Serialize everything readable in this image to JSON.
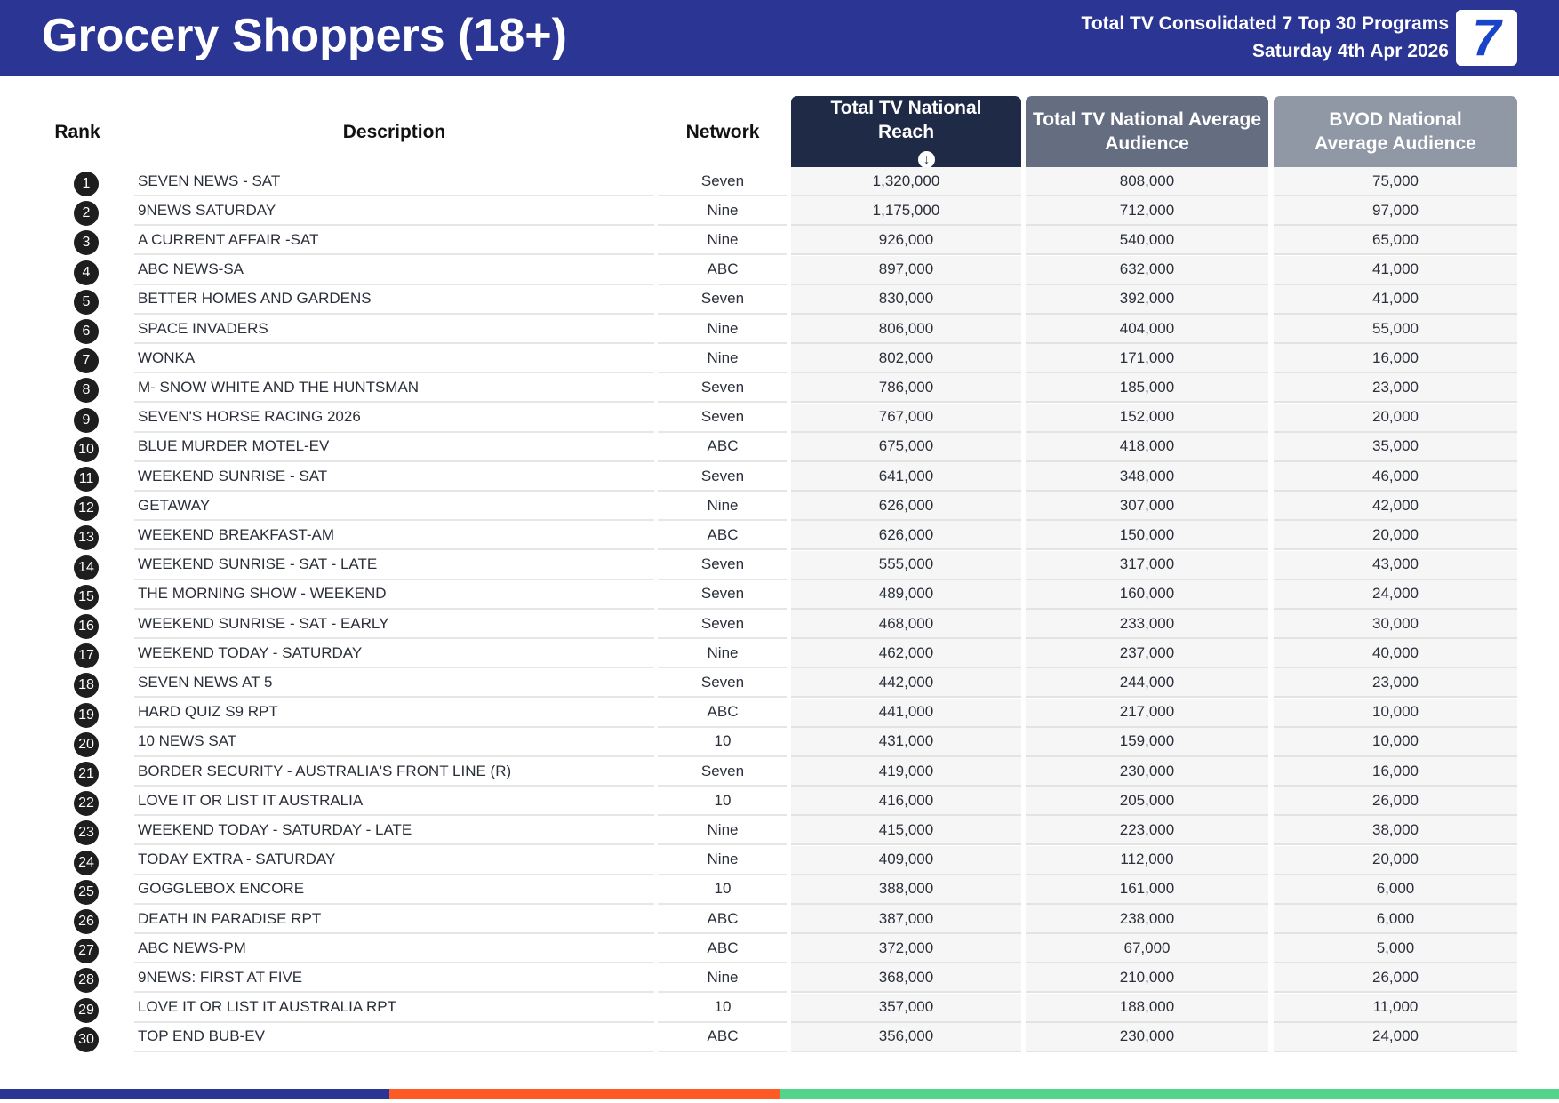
{
  "header": {
    "title": "Grocery Shoppers (18+)",
    "subtitle1": "Total TV Consolidated 7 Top 30 Programs",
    "subtitle2": "Saturday 4th Apr 2026",
    "logo_text": "7"
  },
  "columns": {
    "rank": "Rank",
    "description": "Description",
    "network": "Network",
    "reach": "Total TV National Reach",
    "avg": "Total TV National Average Audience",
    "bvod": "BVOD National Average Audience"
  },
  "colors": {
    "header_bg": "#2b3593",
    "reach_header": "#1f2a47",
    "avg_header": "#656d80",
    "bvod_header": "#9198a5",
    "bar_blue": "#2b3593",
    "bar_orange": "#ff5a26",
    "bar_green": "#52d48a"
  },
  "rows": [
    {
      "rank": "1",
      "desc": "SEVEN NEWS - SAT",
      "network": "Seven",
      "reach": "1,320,000",
      "avg": "808,000",
      "bvod": "75,000"
    },
    {
      "rank": "2",
      "desc": "9NEWS SATURDAY",
      "network": "Nine",
      "reach": "1,175,000",
      "avg": "712,000",
      "bvod": "97,000"
    },
    {
      "rank": "3",
      "desc": "A CURRENT AFFAIR -SAT",
      "network": "Nine",
      "reach": "926,000",
      "avg": "540,000",
      "bvod": "65,000"
    },
    {
      "rank": "4",
      "desc": "ABC NEWS-SA",
      "network": "ABC",
      "reach": "897,000",
      "avg": "632,000",
      "bvod": "41,000"
    },
    {
      "rank": "5",
      "desc": "BETTER HOMES AND GARDENS",
      "network": "Seven",
      "reach": "830,000",
      "avg": "392,000",
      "bvod": "41,000"
    },
    {
      "rank": "6",
      "desc": "SPACE INVADERS",
      "network": "Nine",
      "reach": "806,000",
      "avg": "404,000",
      "bvod": "55,000"
    },
    {
      "rank": "7",
      "desc": "WONKA",
      "network": "Nine",
      "reach": "802,000",
      "avg": "171,000",
      "bvod": "16,000"
    },
    {
      "rank": "8",
      "desc": "M- SNOW WHITE AND THE HUNTSMAN",
      "network": "Seven",
      "reach": "786,000",
      "avg": "185,000",
      "bvod": "23,000"
    },
    {
      "rank": "9",
      "desc": "SEVEN'S HORSE RACING 2026",
      "network": "Seven",
      "reach": "767,000",
      "avg": "152,000",
      "bvod": "20,000"
    },
    {
      "rank": "10",
      "desc": "BLUE MURDER MOTEL-EV",
      "network": "ABC",
      "reach": "675,000",
      "avg": "418,000",
      "bvod": "35,000"
    },
    {
      "rank": "11",
      "desc": "WEEKEND SUNRISE - SAT",
      "network": "Seven",
      "reach": "641,000",
      "avg": "348,000",
      "bvod": "46,000"
    },
    {
      "rank": "12",
      "desc": "GETAWAY",
      "network": "Nine",
      "reach": "626,000",
      "avg": "307,000",
      "bvod": "42,000"
    },
    {
      "rank": "13",
      "desc": "WEEKEND BREAKFAST-AM",
      "network": "ABC",
      "reach": "626,000",
      "avg": "150,000",
      "bvod": "20,000"
    },
    {
      "rank": "14",
      "desc": "WEEKEND SUNRISE - SAT - LATE",
      "network": "Seven",
      "reach": "555,000",
      "avg": "317,000",
      "bvod": "43,000"
    },
    {
      "rank": "15",
      "desc": "THE MORNING SHOW - WEEKEND",
      "network": "Seven",
      "reach": "489,000",
      "avg": "160,000",
      "bvod": "24,000"
    },
    {
      "rank": "16",
      "desc": "WEEKEND SUNRISE - SAT - EARLY",
      "network": "Seven",
      "reach": "468,000",
      "avg": "233,000",
      "bvod": "30,000"
    },
    {
      "rank": "17",
      "desc": "WEEKEND TODAY - SATURDAY",
      "network": "Nine",
      "reach": "462,000",
      "avg": "237,000",
      "bvod": "40,000"
    },
    {
      "rank": "18",
      "desc": "SEVEN NEWS AT 5",
      "network": "Seven",
      "reach": "442,000",
      "avg": "244,000",
      "bvod": "23,000"
    },
    {
      "rank": "19",
      "desc": "HARD QUIZ S9 RPT",
      "network": "ABC",
      "reach": "441,000",
      "avg": "217,000",
      "bvod": "10,000"
    },
    {
      "rank": "20",
      "desc": "10 NEWS SAT",
      "network": "10",
      "reach": "431,000",
      "avg": "159,000",
      "bvod": "10,000"
    },
    {
      "rank": "21",
      "desc": "BORDER SECURITY - AUSTRALIA'S FRONT LINE (R)",
      "network": "Seven",
      "reach": "419,000",
      "avg": "230,000",
      "bvod": "16,000"
    },
    {
      "rank": "22",
      "desc": "LOVE IT OR LIST IT AUSTRALIA",
      "network": "10",
      "reach": "416,000",
      "avg": "205,000",
      "bvod": "26,000"
    },
    {
      "rank": "23",
      "desc": "WEEKEND TODAY - SATURDAY - LATE",
      "network": "Nine",
      "reach": "415,000",
      "avg": "223,000",
      "bvod": "38,000"
    },
    {
      "rank": "24",
      "desc": "TODAY EXTRA - SATURDAY",
      "network": "Nine",
      "reach": "409,000",
      "avg": "112,000",
      "bvod": "20,000"
    },
    {
      "rank": "25",
      "desc": "GOGGLEBOX ENCORE",
      "network": "10",
      "reach": "388,000",
      "avg": "161,000",
      "bvod": "6,000"
    },
    {
      "rank": "26",
      "desc": "DEATH IN PARADISE RPT",
      "network": "ABC",
      "reach": "387,000",
      "avg": "238,000",
      "bvod": "6,000"
    },
    {
      "rank": "27",
      "desc": "ABC NEWS-PM",
      "network": "ABC",
      "reach": "372,000",
      "avg": "67,000",
      "bvod": "5,000"
    },
    {
      "rank": "28",
      "desc": "9NEWS: FIRST AT FIVE",
      "network": "Nine",
      "reach": "368,000",
      "avg": "210,000",
      "bvod": "26,000"
    },
    {
      "rank": "29",
      "desc": "LOVE IT OR LIST IT AUSTRALIA RPT",
      "network": "10",
      "reach": "357,000",
      "avg": "188,000",
      "bvod": "11,000"
    },
    {
      "rank": "30",
      "desc": "TOP END BUB-EV",
      "network": "ABC",
      "reach": "356,000",
      "avg": "230,000",
      "bvod": "24,000"
    }
  ]
}
